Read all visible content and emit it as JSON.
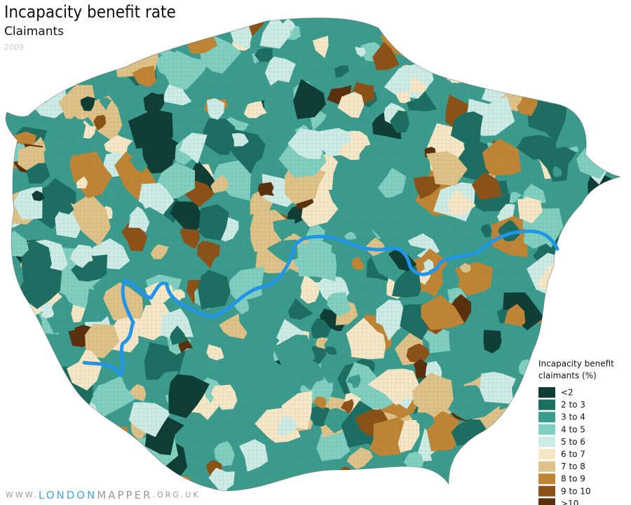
{
  "title": "Incapacity benefit rate",
  "subtitle": "Claimants",
  "year": "2009",
  "legend": {
    "title_lines": [
      "Incapacity benefit",
      "claimants (%)"
    ],
    "items": [
      {
        "label": "<2",
        "color": "#0e3d35"
      },
      {
        "label": "2 to 3",
        "color": "#1c6e62"
      },
      {
        "label": "3 to 4",
        "color": "#3b9c8e"
      },
      {
        "label": "4 to 5",
        "color": "#80cfc0"
      },
      {
        "label": "5 to 6",
        "color": "#cdece6"
      },
      {
        "label": "6 to 7",
        "color": "#f6e8c6"
      },
      {
        "label": "7 to 8",
        "color": "#dfc287"
      },
      {
        "label": "8 to 9",
        "color": "#bf8535"
      },
      {
        "label": "9 to 10",
        "color": "#8c5116"
      },
      {
        "label": ">10",
        "color": "#5a300c"
      }
    ]
  },
  "footer": {
    "prefix": "WWW.",
    "brand_a": "LONDON",
    "brand_b": "MAPPER",
    "suffix": ".ORG.UK"
  }
}
